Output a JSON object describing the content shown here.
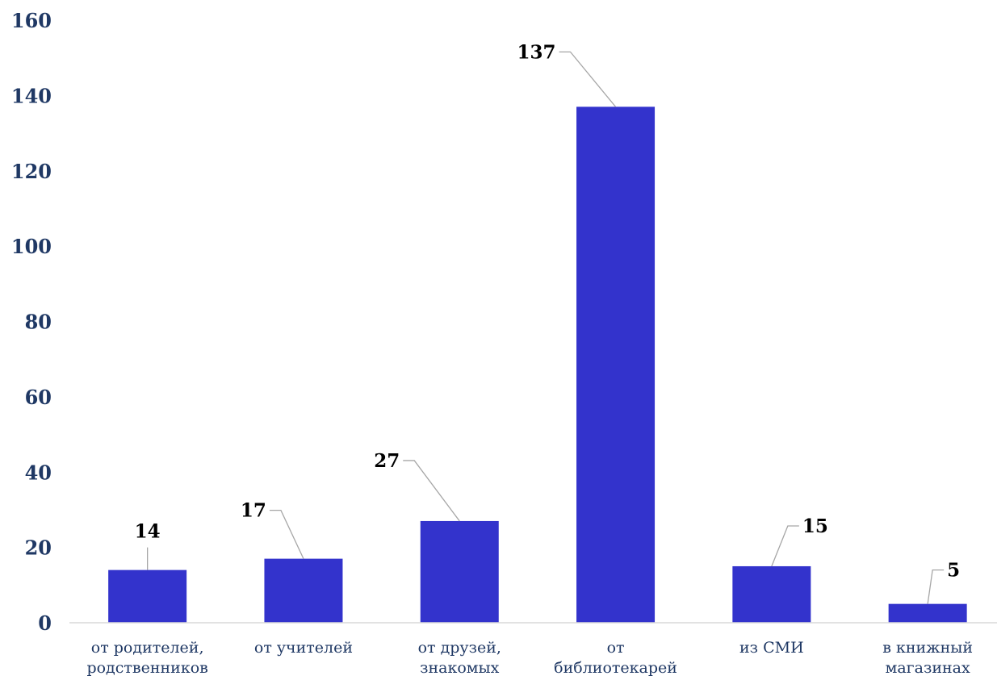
{
  "chart_data": {
    "type": "bar",
    "categories": [
      [
        "от родителей,",
        "родственников"
      ],
      [
        "от учителей"
      ],
      [
        "от друзей,",
        "знакомых"
      ],
      [
        "от",
        "библиотекарей"
      ],
      [
        "из СМИ"
      ],
      [
        "в книжный",
        "магазинах"
      ]
    ],
    "values": [
      14,
      17,
      27,
      137,
      15,
      5
    ],
    "data_labels": [
      "14",
      "17",
      "27",
      "137",
      "15",
      "5"
    ],
    "ylim": [
      0,
      160
    ],
    "yticks": [
      0,
      20,
      40,
      60,
      80,
      100,
      120,
      140,
      160
    ],
    "grid": false,
    "legend": "none",
    "colors": {
      "bar": "#3333cc",
      "tick_text": "#1f3864",
      "label_text": "#000000",
      "leader": "#a6a6a6"
    }
  }
}
